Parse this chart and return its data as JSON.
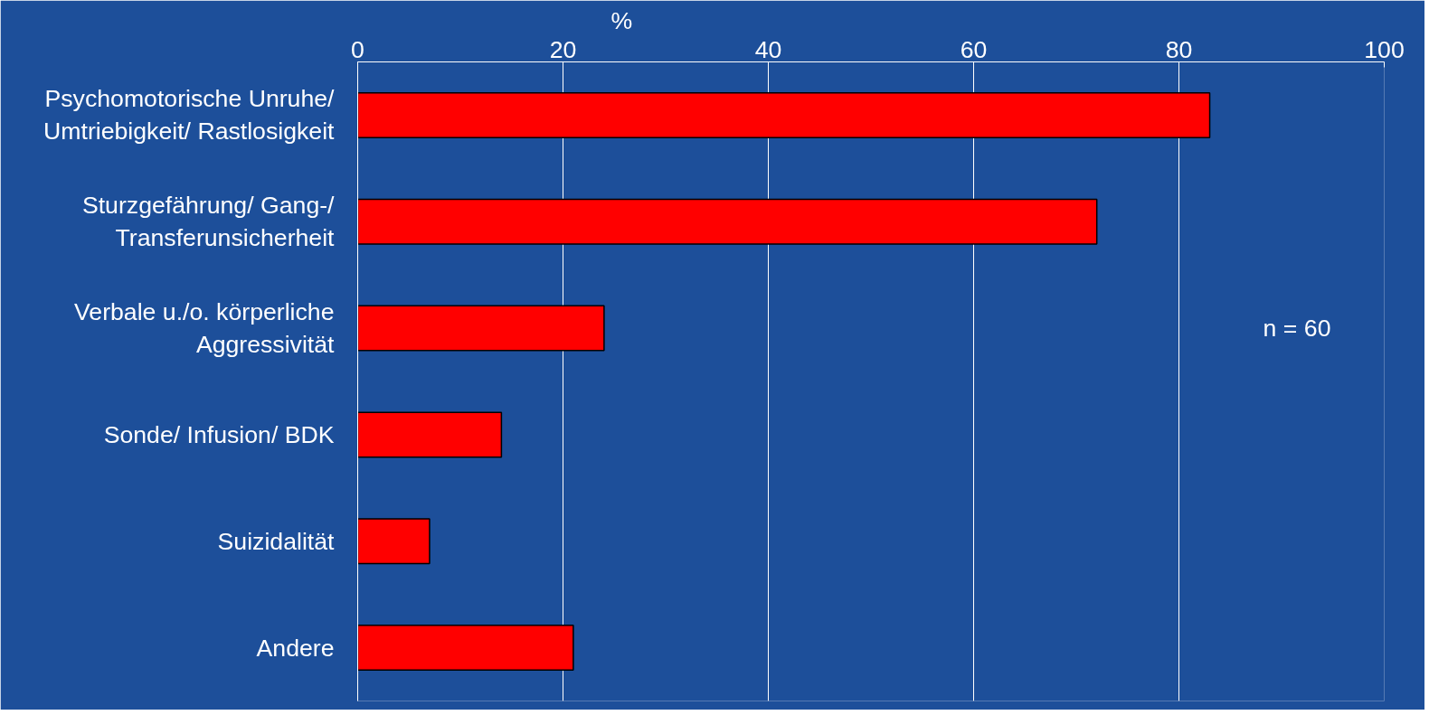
{
  "chart_data": {
    "type": "bar",
    "orientation": "horizontal",
    "xlabel": "%",
    "categories": [
      "Psychomotorische Unruhe/\nUmtriebigkeit/ Rastlosigkeit",
      "Sturzgefährung/ Gang-/\nTransferunsicherheit",
      "Verbale u./o. körperliche\nAggressivität",
      "Sonde/ Infusion/ BDK",
      "Suizidalität",
      "Andere"
    ],
    "values": [
      83,
      72,
      24,
      14,
      7,
      21
    ],
    "color": "#ff0000",
    "xlim": [
      0,
      100
    ],
    "xticks": [
      0,
      20,
      40,
      60,
      80,
      100
    ],
    "grid": "x",
    "annotations": [
      "n = 60"
    ]
  }
}
